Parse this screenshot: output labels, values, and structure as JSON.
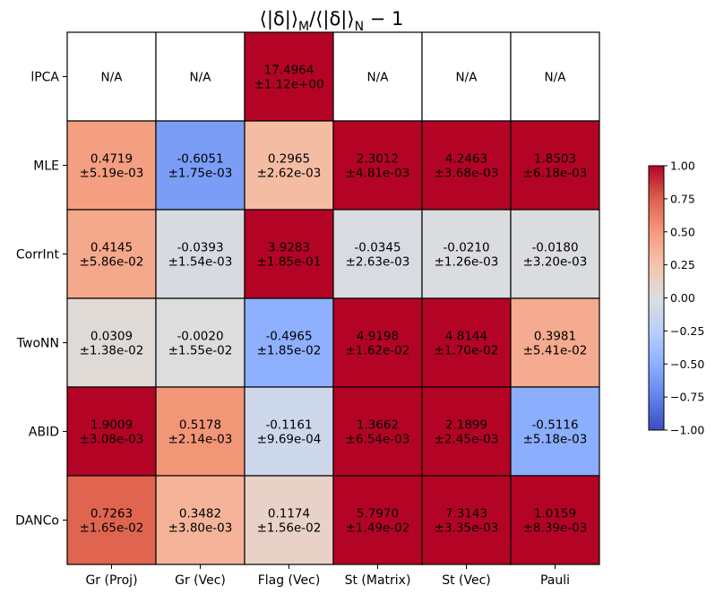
{
  "chart_data": {
    "type": "heatmap",
    "title": "⟨|δ|⟩_M/⟨|δ|⟩_N − 1",
    "title_parts": {
      "a": "⟨|δ|⟩",
      "sub1": "M",
      "b": "/⟨|δ|⟩",
      "sub2": "N",
      "c": " − 1"
    },
    "rows": [
      "lPCA",
      "MLE",
      "CorrInt",
      "TwoNN",
      "ABID",
      "DANCo"
    ],
    "columns": [
      "Gr (Proj)",
      "Gr (Vec)",
      "Flag (Vec)",
      "St (Matrix)",
      "St (Vec)",
      "Pauli"
    ],
    "cells": [
      [
        {
          "value": null,
          "label": "N/A",
          "err": ""
        },
        {
          "value": null,
          "label": "N/A",
          "err": ""
        },
        {
          "value": 17.4964,
          "label": "17.4964",
          "err": "±1.12e+00"
        },
        {
          "value": null,
          "label": "N/A",
          "err": ""
        },
        {
          "value": null,
          "label": "N/A",
          "err": ""
        },
        {
          "value": null,
          "label": "N/A",
          "err": ""
        }
      ],
      [
        {
          "value": 0.4719,
          "label": "0.4719",
          "err": "±5.19e-03"
        },
        {
          "value": -0.6051,
          "label": "-0.6051",
          "err": "±1.75e-03"
        },
        {
          "value": 0.2965,
          "label": "0.2965",
          "err": "±2.62e-03"
        },
        {
          "value": 2.3012,
          "label": "2.3012",
          "err": "±4.81e-03"
        },
        {
          "value": 4.2463,
          "label": "4.2463",
          "err": "±3.68e-03"
        },
        {
          "value": 1.8503,
          "label": "1.8503",
          "err": "±6.18e-03"
        }
      ],
      [
        {
          "value": 0.4145,
          "label": "0.4145",
          "err": "±5.86e-02"
        },
        {
          "value": -0.0393,
          "label": "-0.0393",
          "err": "±1.54e-03"
        },
        {
          "value": 3.9283,
          "label": "3.9283",
          "err": "±1.85e-01"
        },
        {
          "value": -0.0345,
          "label": "-0.0345",
          "err": "±2.63e-03"
        },
        {
          "value": -0.021,
          "label": "-0.0210",
          "err": "±1.26e-03"
        },
        {
          "value": -0.018,
          "label": "-0.0180",
          "err": "±3.20e-03"
        }
      ],
      [
        {
          "value": 0.0309,
          "label": "0.0309",
          "err": "±1.38e-02"
        },
        {
          "value": -0.002,
          "label": "-0.0020",
          "err": "±1.55e-02"
        },
        {
          "value": -0.4965,
          "label": "-0.4965",
          "err": "±1.85e-02"
        },
        {
          "value": 4.9198,
          "label": "4.9198",
          "err": "±1.62e-02"
        },
        {
          "value": 4.8144,
          "label": "4.8144",
          "err": "±1.70e-02"
        },
        {
          "value": 0.3981,
          "label": "0.3981",
          "err": "±5.41e-02"
        }
      ],
      [
        {
          "value": 1.9009,
          "label": "1.9009",
          "err": "±3.08e-03"
        },
        {
          "value": 0.5178,
          "label": "0.5178",
          "err": "±2.14e-03"
        },
        {
          "value": -0.1161,
          "label": "-0.1161",
          "err": "±9.69e-04"
        },
        {
          "value": 1.3662,
          "label": "1.3662",
          "err": "±6.54e-03"
        },
        {
          "value": 2.1899,
          "label": "2.1899",
          "err": "±2.45e-03"
        },
        {
          "value": -0.5116,
          "label": "-0.5116",
          "err": "±5.18e-03"
        }
      ],
      [
        {
          "value": 0.7263,
          "label": "0.7263",
          "err": "±1.65e-02"
        },
        {
          "value": 0.3482,
          "label": "0.3482",
          "err": "±3.80e-03"
        },
        {
          "value": 0.1174,
          "label": "0.1174",
          "err": "±1.56e-02"
        },
        {
          "value": 5.797,
          "label": "5.7970",
          "err": "±1.49e-02"
        },
        {
          "value": 7.3143,
          "label": "7.3143",
          "err": "±3.35e-03"
        },
        {
          "value": 1.0159,
          "label": "1.0159",
          "err": "±8.39e-03"
        }
      ]
    ],
    "colorbar": {
      "colormap": "coolwarm",
      "range": [
        -1.0,
        1.0
      ],
      "ticks": [
        1.0,
        0.75,
        0.5,
        0.25,
        0.0,
        -0.25,
        -0.5,
        -0.75,
        -1.0
      ],
      "tick_labels": [
        "1.00",
        "0.75",
        "0.50",
        "0.25",
        "0.00",
        "−0.25",
        "−0.50",
        "−0.75",
        "−1.00"
      ]
    },
    "na_color": "#ffffff",
    "grid": false
  }
}
